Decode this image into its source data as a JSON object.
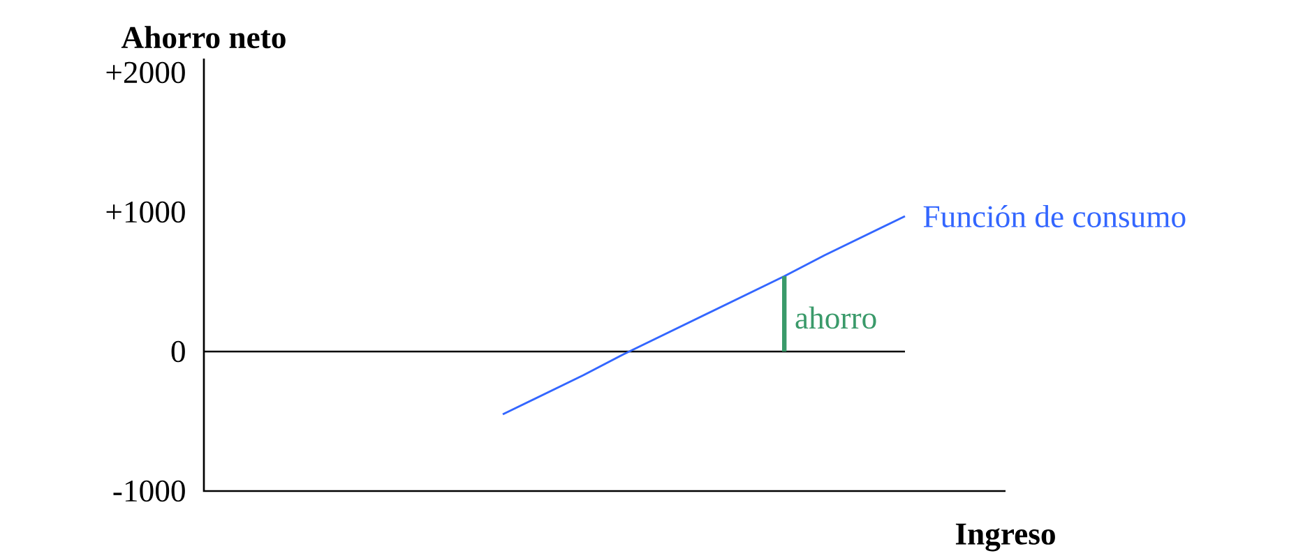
{
  "chart_data": {
    "type": "line",
    "ylabel": "Ahorro neto",
    "xlabel": "Ingreso",
    "categories": [
      null,
      null,
      null,
      null,
      null,
      null,
      null,
      null,
      null,
      null,
      null
    ],
    "ylim": [
      -1000,
      2100
    ],
    "yticks": [
      {
        "value": 2000,
        "label": "+2000"
      },
      {
        "value": 1000,
        "label": "+1000"
      },
      0,
      -1000
    ],
    "tick_labels": "y",
    "ref_lines": [
      {
        "axis": "y",
        "value": 0,
        "color": "#000000"
      }
    ],
    "series": [
      {
        "name": "Función de consumo",
        "color": "#3366ff",
        "values": [
          -450,
          -310,
          -170,
          -20,
          120,
          260,
          400,
          540,
          690,
          830,
          970
        ]
      },
      {
        "name": "ahorro",
        "type": "bar",
        "color": "#3a9a6a",
        "values": [
          null,
          null,
          null,
          null,
          null,
          null,
          null,
          540,
          null,
          null,
          null
        ]
      }
    ]
  }
}
